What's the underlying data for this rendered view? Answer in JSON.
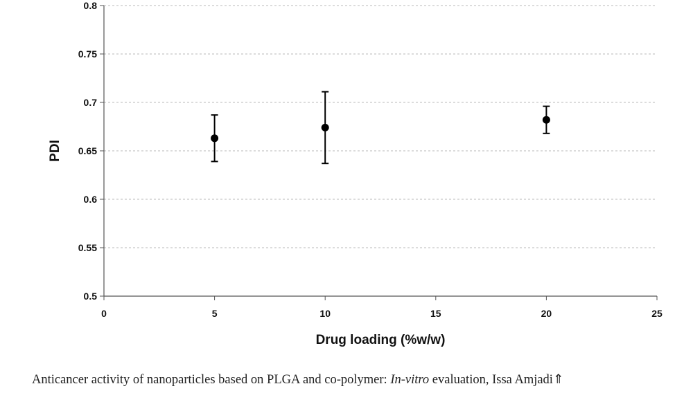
{
  "chart_data": {
    "type": "scatter",
    "xlabel": "Drug loading (%w/w)",
    "ylabel": "PDI",
    "xlim": [
      0,
      25
    ],
    "ylim": [
      0.5,
      0.8
    ],
    "xticks": [
      0,
      5,
      10,
      15,
      20,
      25
    ],
    "yticks": [
      0.5,
      0.55,
      0.6,
      0.65,
      0.7,
      0.75,
      0.8
    ],
    "xtick_labels": [
      "0",
      "5",
      "10",
      "15",
      "20",
      "25"
    ],
    "ytick_labels": [
      "0.5",
      "0.55",
      "0.6",
      "0.65",
      "0.7",
      "0.75",
      "0.8"
    ],
    "grid": "horizontal dashed",
    "series": [
      {
        "points": [
          {
            "x": 5,
            "y": 0.663,
            "err_low": 0.639,
            "err_high": 0.687
          },
          {
            "x": 10,
            "y": 0.674,
            "err_low": 0.637,
            "err_high": 0.711
          },
          {
            "x": 20,
            "y": 0.682,
            "err_low": 0.668,
            "err_high": 0.696
          }
        ]
      }
    ]
  },
  "caption": {
    "prefix": "Anticancer activity of nanoparticles based on PLGA and co-polymer: ",
    "italic": "In-vitro",
    "suffix": " evaluation, Issa Amjadi⇑"
  }
}
